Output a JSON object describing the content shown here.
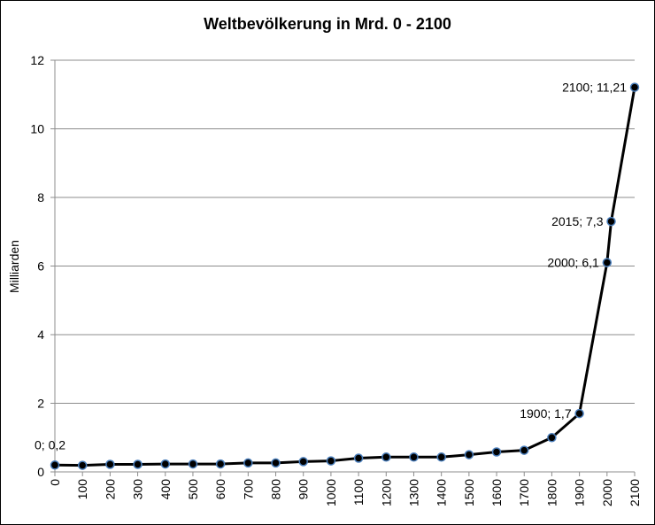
{
  "chart_data": {
    "type": "line",
    "title": "Weltbevölkerung in Mrd. 0 - 2100",
    "xlabel": "",
    "ylabel": "Milliarden",
    "ylim": [
      0,
      12
    ],
    "yticks": [
      0,
      2,
      4,
      6,
      8,
      10,
      12
    ],
    "grid": true,
    "legend": "none",
    "categories": [
      "0",
      "100",
      "200",
      "300",
      "400",
      "500",
      "600",
      "700",
      "800",
      "900",
      "1000",
      "1100",
      "1200",
      "1300",
      "1400",
      "1500",
      "1600",
      "1700",
      "1800",
      "1900",
      "2000",
      "2015",
      "2100"
    ],
    "x_tick_labels": [
      "0",
      "100",
      "200",
      "300",
      "400",
      "500",
      "600",
      "700",
      "800",
      "900",
      "1000",
      "1100",
      "1200",
      "1300",
      "1400",
      "1500",
      "1600",
      "1700",
      "1800",
      "1900",
      "2000",
      "2100"
    ],
    "series": [
      {
        "values": [
          0.2,
          0.19,
          0.22,
          0.22,
          0.23,
          0.23,
          0.23,
          0.26,
          0.26,
          0.3,
          0.32,
          0.4,
          0.43,
          0.43,
          0.43,
          0.5,
          0.58,
          0.63,
          1.0,
          1.7,
          6.1,
          7.3,
          11.21
        ],
        "color": "#000000",
        "marker_fill": "#000000",
        "marker_edge": "#4a7ebb"
      }
    ],
    "data_labels": [
      {
        "index": 0,
        "text": "0; 0,2"
      },
      {
        "index": 19,
        "text": "1900; 1,7"
      },
      {
        "index": 20,
        "text": "2000; 6,1"
      },
      {
        "index": 21,
        "text": "2015; 7,3"
      },
      {
        "index": 22,
        "text": "2100; 11,21"
      }
    ]
  }
}
